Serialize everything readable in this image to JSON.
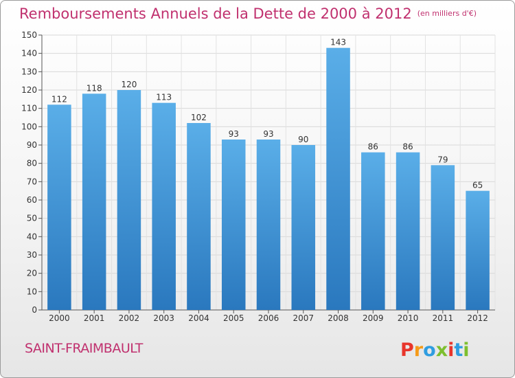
{
  "header": {
    "title": "Remboursements Annuels de la Dette de 2000 à 2012",
    "unit": "(en milliers d'€)"
  },
  "footer": {
    "commune": "SAINT-FRAIMBAULT",
    "logo_text": "Proxiti"
  },
  "colors": {
    "title": "#c0306e",
    "bar_top": "#5aaee8",
    "bar_bottom": "#2a78be",
    "logo_letters": [
      "#e8352b",
      "#f59b1a",
      "#2f9de0",
      "#7dbf2f",
      "#e8352b",
      "#2f9de0",
      "#7dbf2f"
    ]
  },
  "chart_data": {
    "type": "bar",
    "title": "Remboursements Annuels de la Dette de 2000 à 2012",
    "xlabel": "",
    "ylabel": "",
    "ylim": [
      0,
      150
    ],
    "yticks": [
      0,
      10,
      20,
      30,
      40,
      50,
      60,
      70,
      80,
      90,
      100,
      110,
      120,
      130,
      140,
      150
    ],
    "grid": true,
    "categories": [
      "2000",
      "2001",
      "2002",
      "2003",
      "2004",
      "2005",
      "2006",
      "2007",
      "2008",
      "2009",
      "2010",
      "2011",
      "2012"
    ],
    "values": [
      112,
      118,
      120,
      113,
      102,
      93,
      93,
      90,
      143,
      86,
      86,
      79,
      65
    ]
  }
}
